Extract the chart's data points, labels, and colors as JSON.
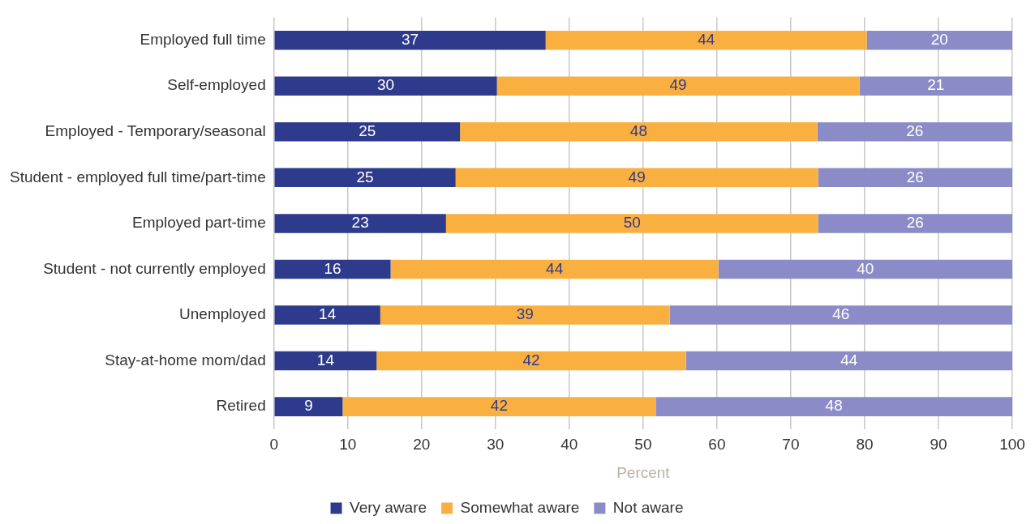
{
  "chart_data": {
    "type": "bar",
    "orientation": "horizontal",
    "stacked": true,
    "xlabel": "Percent",
    "categories": [
      "Employed full time",
      "Self-employed",
      "Employed - Temporary/seasonal",
      "Student - employed full time/part-time",
      "Employed part-time",
      "Student - not currently employed",
      "Unemployed",
      "Stay-at-home mom/dad",
      "Retired"
    ],
    "series": [
      {
        "name": "Very aware",
        "color": "#2e3a8c",
        "values": [
          36.8,
          30.2,
          25.2,
          24.6,
          23.3,
          15.8,
          14.4,
          13.9,
          9.3
        ],
        "value_labels": [
          "37",
          "30",
          "25",
          "25",
          "23",
          "16",
          "14",
          "14",
          "9"
        ]
      },
      {
        "name": "Somewhat aware",
        "color": "#f9b040",
        "values": [
          43.5,
          49.1,
          48.4,
          49.1,
          50.4,
          44.4,
          39.2,
          41.9,
          42.4
        ],
        "value_labels": [
          "44",
          "49",
          "48",
          "49",
          "50",
          "44",
          "39",
          "42",
          "42"
        ]
      },
      {
        "name": "Not aware",
        "color": "#8b8cc7",
        "values": [
          19.7,
          20.7,
          26.4,
          26.3,
          26.3,
          39.8,
          46.4,
          44.2,
          48.3
        ],
        "value_labels": [
          "20",
          "21",
          "26",
          "26",
          "26",
          "40",
          "46",
          "44",
          "48"
        ]
      }
    ],
    "xlim": [
      0,
      100
    ],
    "xticks": [
      0,
      10,
      20,
      30,
      40,
      50,
      60,
      70,
      80,
      90,
      100
    ],
    "grid": "x",
    "legend": "bottom"
  }
}
